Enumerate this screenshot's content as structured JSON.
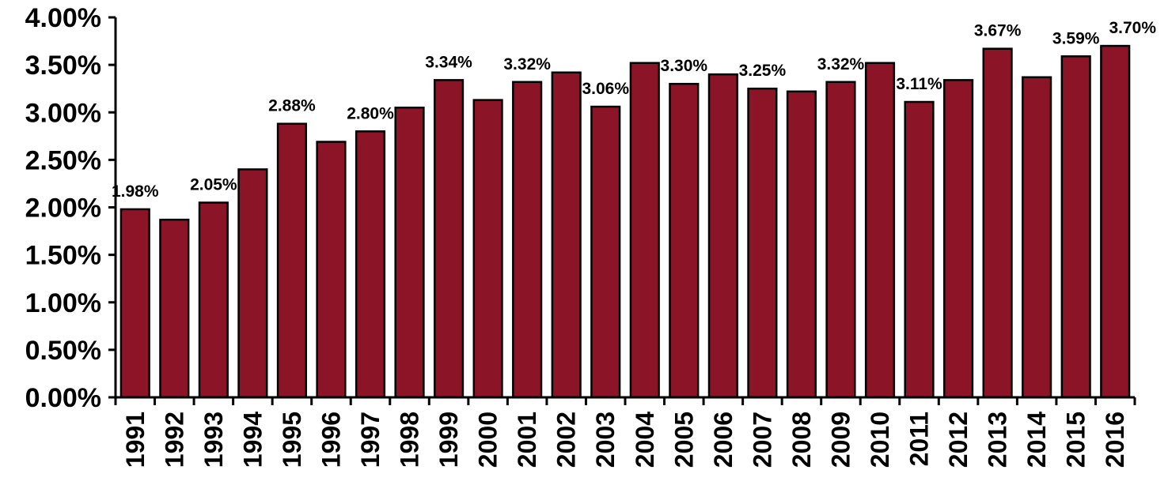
{
  "chart_data": {
    "type": "bar",
    "categories": [
      "1991",
      "1992",
      "1993",
      "1994",
      "1995",
      "1996",
      "1997",
      "1998",
      "1999",
      "2000",
      "2001",
      "2002",
      "2003",
      "2004",
      "2005",
      "2006",
      "2007",
      "2008",
      "2009",
      "2010",
      "2011",
      "2012",
      "2013",
      "2014",
      "2015",
      "2016"
    ],
    "values": [
      1.98,
      1.87,
      2.05,
      2.4,
      2.88,
      2.69,
      2.8,
      3.05,
      3.34,
      3.13,
      3.32,
      3.42,
      3.06,
      3.52,
      3.3,
      3.4,
      3.25,
      3.22,
      3.32,
      3.52,
      3.11,
      3.34,
      3.67,
      3.37,
      3.59,
      3.7
    ],
    "data_labels": [
      {
        "category": "1991",
        "text": "1.98%"
      },
      {
        "category": "1993",
        "text": "2.05%"
      },
      {
        "category": "1995",
        "text": "2.88%"
      },
      {
        "category": "1997",
        "text": "2.80%"
      },
      {
        "category": "1999",
        "text": "3.34%"
      },
      {
        "category": "2001",
        "text": "3.32%"
      },
      {
        "category": "2003",
        "text": "3.06%"
      },
      {
        "category": "2005",
        "text": "3.30%"
      },
      {
        "category": "2007",
        "text": "3.25%"
      },
      {
        "category": "2009",
        "text": "3.32%"
      },
      {
        "category": "2011",
        "text": "3.11%"
      },
      {
        "category": "2013",
        "text": "3.67%"
      },
      {
        "category": "2015",
        "text": "3.59%"
      },
      {
        "category": "2016",
        "text": "3.70%"
      }
    ],
    "y_ticks": [
      "0.00%",
      "0.50%",
      "1.00%",
      "1.50%",
      "2.00%",
      "2.50%",
      "3.00%",
      "3.50%",
      "4.00%"
    ],
    "ylim": [
      0,
      4
    ],
    "grid": false,
    "legend": "none",
    "bar_color": "#8B1526",
    "bar_edge_color": "#000000"
  }
}
